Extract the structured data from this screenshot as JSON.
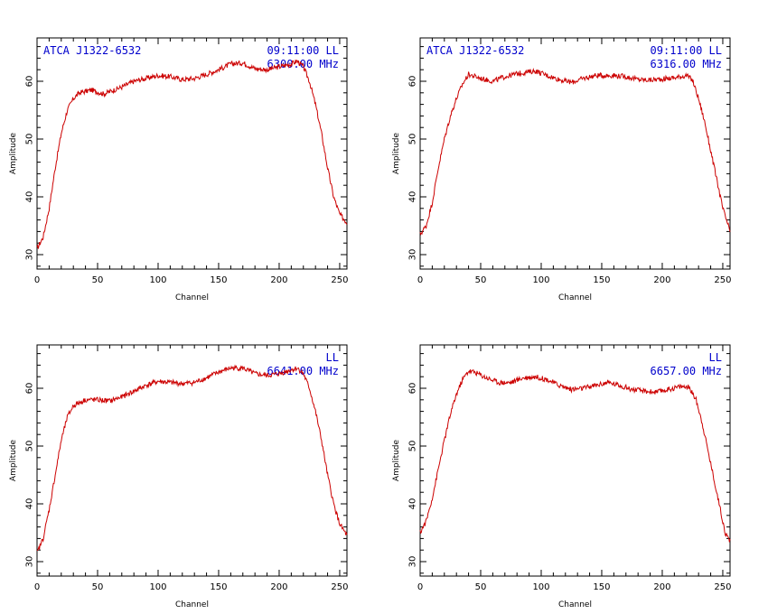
{
  "chart_data": [
    {
      "type": "line",
      "annotations": {
        "left": "ATCA J1322-6532",
        "right1": "09:11:00  LL",
        "right2": "6300.00 MHz"
      },
      "xlabel": "Channel",
      "ylabel": "Amplitude",
      "xlim": [
        0,
        256
      ],
      "ylim": [
        27.5,
        67.5
      ],
      "xticks": [
        0,
        50,
        100,
        150,
        200,
        250
      ],
      "yticks": [
        30,
        40,
        50,
        60
      ],
      "series": [
        {
          "color": "#cc0000",
          "points": [
            [
              0,
              31
            ],
            [
              5,
              33
            ],
            [
              10,
              38
            ],
            [
              15,
              45
            ],
            [
              20,
              51
            ],
            [
              25,
              55
            ],
            [
              30,
              57
            ],
            [
              35,
              58
            ],
            [
              45,
              58.5
            ],
            [
              55,
              57.8
            ],
            [
              70,
              59
            ],
            [
              80,
              60
            ],
            [
              90,
              60.5
            ],
            [
              100,
              61
            ],
            [
              110,
              60.8
            ],
            [
              120,
              60.3
            ],
            [
              130,
              60.5
            ],
            [
              140,
              61.2
            ],
            [
              150,
              62
            ],
            [
              160,
              63
            ],
            [
              170,
              63.2
            ],
            [
              180,
              62.2
            ],
            [
              190,
              62
            ],
            [
              200,
              62.5
            ],
            [
              210,
              63
            ],
            [
              215,
              63.5
            ],
            [
              220,
              62.5
            ],
            [
              225,
              60
            ],
            [
              230,
              56
            ],
            [
              235,
              51
            ],
            [
              240,
              45
            ],
            [
              245,
              40
            ],
            [
              250,
              37
            ],
            [
              256,
              35.5
            ]
          ]
        }
      ]
    },
    {
      "type": "line",
      "annotations": {
        "left": "ATCA J1322-6532",
        "right1": "09:11:00  LL",
        "right2": "6316.00 MHz"
      },
      "xlabel": "Channel",
      "ylabel": "Amplitude",
      "xlim": [
        0,
        256
      ],
      "ylim": [
        27.5,
        67.5
      ],
      "xticks": [
        0,
        50,
        100,
        150,
        200,
        250
      ],
      "yticks": [
        30,
        40,
        50,
        60
      ],
      "series": [
        {
          "color": "#cc0000",
          "points": [
            [
              0,
              33.5
            ],
            [
              5,
              35
            ],
            [
              10,
              39
            ],
            [
              15,
              45
            ],
            [
              20,
              50
            ],
            [
              25,
              54
            ],
            [
              30,
              57
            ],
            [
              35,
              59.5
            ],
            [
              40,
              61.2
            ],
            [
              50,
              60.5
            ],
            [
              60,
              60
            ],
            [
              70,
              60.8
            ],
            [
              80,
              61.3
            ],
            [
              95,
              61.8
            ],
            [
              105,
              61
            ],
            [
              115,
              60.3
            ],
            [
              125,
              59.8
            ],
            [
              135,
              60.5
            ],
            [
              145,
              61
            ],
            [
              160,
              61
            ],
            [
              170,
              60.8
            ],
            [
              180,
              60.3
            ],
            [
              190,
              60.2
            ],
            [
              200,
              60.4
            ],
            [
              210,
              60.6
            ],
            [
              220,
              61
            ],
            [
              225,
              60.2
            ],
            [
              230,
              57
            ],
            [
              235,
              53
            ],
            [
              240,
              48
            ],
            [
              245,
              43
            ],
            [
              250,
              38
            ],
            [
              256,
              34
            ]
          ]
        }
      ]
    },
    {
      "type": "line",
      "annotations": {
        "left": "",
        "right1": "LL",
        "right2": "6641.00 MHz"
      },
      "xlabel": "Channel",
      "ylabel": "Amplitude",
      "xlim": [
        0,
        256
      ],
      "ylim": [
        27.5,
        67.5
      ],
      "xticks": [
        0,
        50,
        100,
        150,
        200,
        250
      ],
      "yticks": [
        30,
        40,
        50,
        60
      ],
      "series": [
        {
          "color": "#cc0000",
          "points": [
            [
              0,
              31.5
            ],
            [
              5,
              34
            ],
            [
              10,
              39
            ],
            [
              15,
              45
            ],
            [
              20,
              51
            ],
            [
              25,
              55
            ],
            [
              30,
              57
            ],
            [
              40,
              58
            ],
            [
              50,
              58
            ],
            [
              60,
              57.8
            ],
            [
              70,
              58.5
            ],
            [
              80,
              59.5
            ],
            [
              90,
              60.5
            ],
            [
              100,
              61.2
            ],
            [
              110,
              61
            ],
            [
              120,
              60.8
            ],
            [
              130,
              61
            ],
            [
              140,
              61.8
            ],
            [
              150,
              62.8
            ],
            [
              160,
              63.5
            ],
            [
              170,
              63.5
            ],
            [
              180,
              62.5
            ],
            [
              190,
              62.2
            ],
            [
              200,
              62.5
            ],
            [
              210,
              63.2
            ],
            [
              215,
              63.5
            ],
            [
              220,
              62.5
            ],
            [
              225,
              60
            ],
            [
              230,
              56
            ],
            [
              235,
              51
            ],
            [
              240,
              45
            ],
            [
              245,
              40
            ],
            [
              250,
              36.5
            ],
            [
              256,
              34.5
            ]
          ]
        }
      ]
    },
    {
      "type": "line",
      "annotations": {
        "left": "",
        "right1": "LL",
        "right2": "6657.00 MHz"
      },
      "xlabel": "Channel",
      "ylabel": "Amplitude",
      "xlim": [
        0,
        256
      ],
      "ylim": [
        27.5,
        67.5
      ],
      "xticks": [
        0,
        50,
        100,
        150,
        200,
        250
      ],
      "yticks": [
        30,
        40,
        50,
        60
      ],
      "series": [
        {
          "color": "#cc0000",
          "points": [
            [
              0,
              35
            ],
            [
              5,
              37
            ],
            [
              10,
              41
            ],
            [
              15,
              46
            ],
            [
              20,
              51
            ],
            [
              25,
              55.5
            ],
            [
              30,
              59
            ],
            [
              35,
              61.5
            ],
            [
              40,
              63
            ],
            [
              45,
              62.8
            ],
            [
              55,
              61.8
            ],
            [
              65,
              61
            ],
            [
              75,
              61
            ],
            [
              85,
              61.8
            ],
            [
              95,
              62
            ],
            [
              105,
              61.5
            ],
            [
              115,
              60.5
            ],
            [
              125,
              59.8
            ],
            [
              135,
              60
            ],
            [
              145,
              60.5
            ],
            [
              155,
              61
            ],
            [
              165,
              60.5
            ],
            [
              175,
              59.8
            ],
            [
              185,
              59.5
            ],
            [
              195,
              59.3
            ],
            [
              205,
              59.8
            ],
            [
              215,
              60.3
            ],
            [
              222,
              60.2
            ],
            [
              228,
              58
            ],
            [
              233,
              54
            ],
            [
              238,
              49
            ],
            [
              243,
              44
            ],
            [
              248,
              39
            ],
            [
              252,
              35
            ],
            [
              256,
              33.5
            ]
          ]
        }
      ]
    }
  ]
}
